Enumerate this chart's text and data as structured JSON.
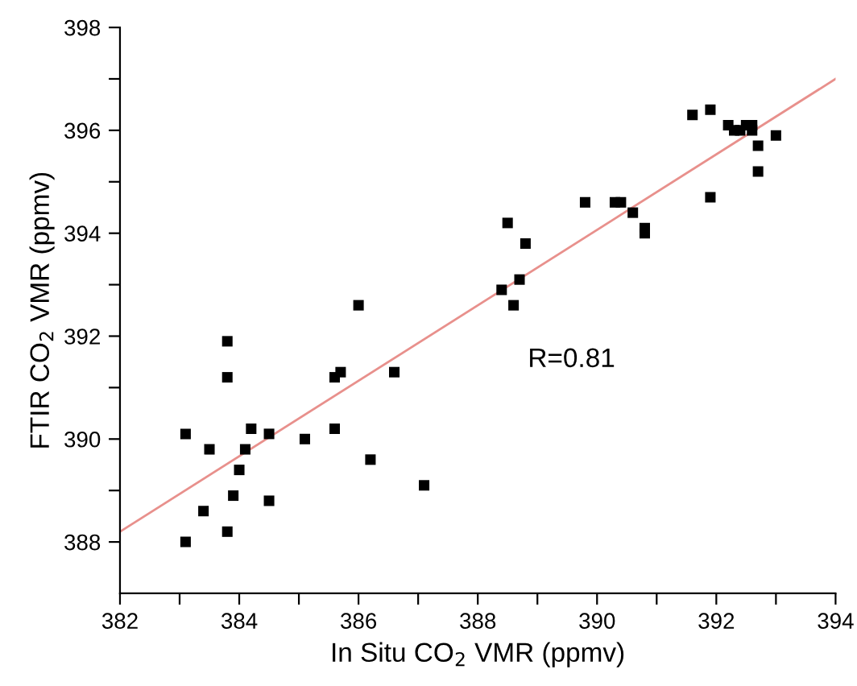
{
  "chart_data": {
    "type": "scatter",
    "xlabel": "In Situ CO$_{2}$ VMR (ppmv)",
    "ylabel": "FTIR CO$_{2}$ VMR (ppmv)",
    "annotations": [
      "R=0.81"
    ],
    "xlim": [
      382,
      394
    ],
    "ylim": [
      387,
      398
    ],
    "xticks": [
      382,
      {
        "value": 383,
        "label": null
      },
      384,
      {
        "value": 385,
        "label": null
      },
      386,
      {
        "value": 387,
        "label": null
      },
      388,
      {
        "value": 389,
        "label": null
      },
      390,
      {
        "value": 391,
        "label": null
      },
      392,
      {
        "value": 393,
        "label": null
      },
      394
    ],
    "yticks": [
      388,
      {
        "value": 389,
        "label": null
      },
      390,
      {
        "value": 391,
        "label": null
      },
      392,
      {
        "value": 393,
        "label": null
      },
      394,
      {
        "value": 395,
        "label": null
      },
      396,
      {
        "value": 397,
        "label": null
      },
      398
    ],
    "grid": false,
    "legend": false,
    "marker": "square",
    "series": [
      {
        "color": "#000000",
        "x": [
          383.1,
          383.1,
          383.4,
          383.5,
          383.8,
          383.8,
          383.8,
          383.9,
          384.0,
          384.1,
          384.2,
          384.5,
          384.5,
          385.1,
          385.6,
          385.6,
          385.7,
          386.0,
          386.2,
          386.6,
          387.1,
          388.4,
          388.5,
          388.6,
          388.7,
          388.8,
          389.8,
          390.3,
          390.4,
          390.6,
          390.8,
          390.8,
          391.6,
          391.9,
          391.9,
          392.2,
          392.3,
          392.4,
          392.5,
          392.6,
          392.6,
          392.7,
          392.7,
          393.0
        ],
        "values": [
          388.0,
          390.1,
          388.6,
          389.8,
          388.2,
          391.2,
          391.9,
          388.9,
          389.4,
          389.8,
          390.2,
          390.1,
          388.8,
          390.0,
          390.2,
          391.2,
          391.3,
          392.6,
          389.6,
          391.3,
          389.1,
          392.9,
          394.2,
          392.6,
          393.1,
          393.8,
          394.6,
          394.6,
          394.6,
          394.4,
          394.1,
          394.0,
          396.3,
          396.4,
          394.7,
          396.1,
          396.0,
          396.0,
          396.1,
          396.1,
          396.0,
          395.7,
          395.2,
          395.9
        ]
      },
      {
        "type": "line",
        "color": "#e8908c",
        "marker": "none",
        "x": [
          382,
          394
        ],
        "values": [
          388.2,
          397.0
        ]
      }
    ]
  }
}
